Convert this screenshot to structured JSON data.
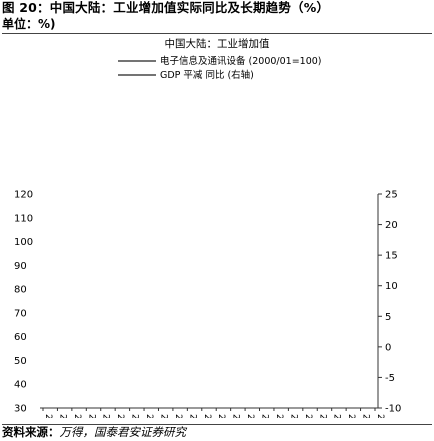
{
  "figure": {
    "title": "图 20：中国大陆：工业增加值实际同比及长期趋势（%）",
    "unit": "单位：%)",
    "source_label": "资料来源：",
    "source_text": "万得，国泰君安证券研究"
  },
  "chart_data": {
    "type": "line",
    "title": "中国大陆：工业增加值",
    "legend": [
      "电子信息及通讯设备 (2000/01=100)",
      "GDP 平减 同比 (右轴)"
    ],
    "x_tick_labels": [
      "2000-01",
      "2001-01",
      "2002-01",
      "2003-01",
      "2004-01",
      "2005-01",
      "2006-01",
      "2007-01",
      "2008-01",
      "2009-01",
      "2010-01",
      "2011-01",
      "2012-01",
      "2013-01",
      "2014-01",
      "2015-01",
      "2016-01",
      "2017-01",
      "2018-01",
      "2019-01",
      "2020-01",
      "2021-01",
      "2022-01",
      "2023-01"
    ],
    "y_left": {
      "ticks": [
        30,
        40,
        50,
        60,
        70,
        80,
        90,
        100,
        110,
        120
      ],
      "lim": [
        30,
        120
      ]
    },
    "y_right": {
      "ticks": [
        -10,
        -5,
        0,
        5,
        10,
        15,
        20,
        25
      ],
      "lim": [
        -10,
        25
      ]
    },
    "series": [],
    "legend_position": "top-center",
    "grid": false
  }
}
